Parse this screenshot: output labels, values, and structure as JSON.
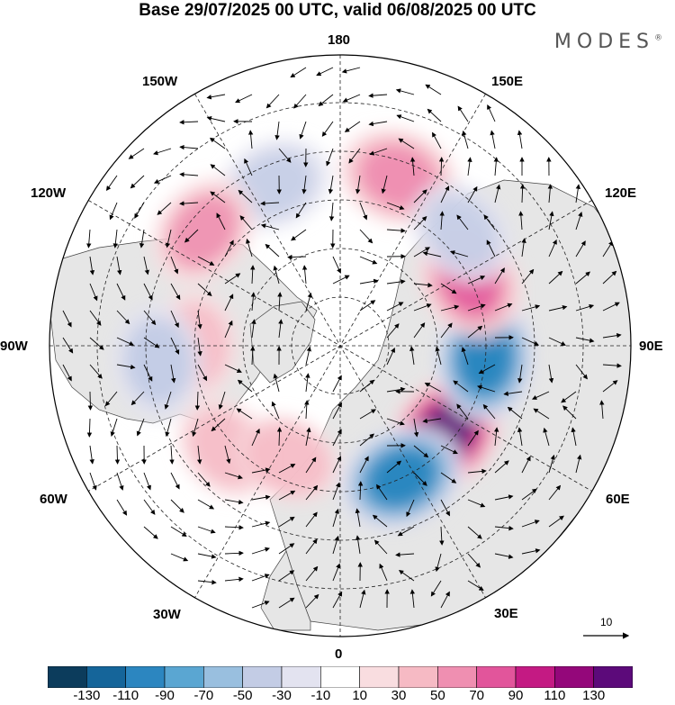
{
  "header": {
    "title": "Base 29/07/2025 00 UTC, valid 06/08/2025 00 UTC",
    "brand": "MODES",
    "brand_mark": "®"
  },
  "longitude_labels": {
    "lon_180": "180",
    "lon_150e": "150E",
    "lon_120e": "120E",
    "lon_90e": "90E",
    "lon_60e": "60E",
    "lon_30e": "30E",
    "lon_0": "0",
    "lon_30w": "30W",
    "lon_60w": "60W",
    "lon_90w": "90W",
    "lon_120w": "120W",
    "lon_150w": "150W"
  },
  "vector_scale": {
    "label": "10"
  },
  "colorbar": {
    "colors": [
      "#0c3c5c",
      "#15659a",
      "#2c86c0",
      "#5aa6d2",
      "#99bfdf",
      "#c3cce5",
      "#e3e3f0",
      "#ffffff",
      "#f9dde0",
      "#f6bac4",
      "#ef8fb1",
      "#e2559b",
      "#c41a83",
      "#94077a",
      "#5c0a7a"
    ],
    "labels": [
      "-130",
      "-110",
      "-90",
      "-70",
      "-50",
      "-30",
      "-10",
      "10",
      "30",
      "50",
      "70",
      "90",
      "110",
      "130"
    ]
  },
  "anomalies": [
    {
      "lat": 57,
      "lon": 50,
      "value": 130
    },
    {
      "lat": 55,
      "lon": 25,
      "value": -110
    },
    {
      "lat": 55,
      "lon": 85,
      "value": -110
    },
    {
      "lat": 55,
      "lon": 117,
      "value": 80
    },
    {
      "lat": 47,
      "lon": 161,
      "value": 65
    },
    {
      "lat": 50,
      "lon": 133,
      "value": -40
    },
    {
      "lat": 48,
      "lon": -158,
      "value": -40
    },
    {
      "lat": 47,
      "lon": -130,
      "value": 50
    },
    {
      "lat": 55,
      "lon": -90,
      "value": 35
    },
    {
      "lat": 46,
      "lon": -85,
      "value": -45
    },
    {
      "lat": 53,
      "lon": -48,
      "value": 35
    },
    {
      "lat": 60,
      "lon": -25,
      "value": 30
    }
  ]
}
